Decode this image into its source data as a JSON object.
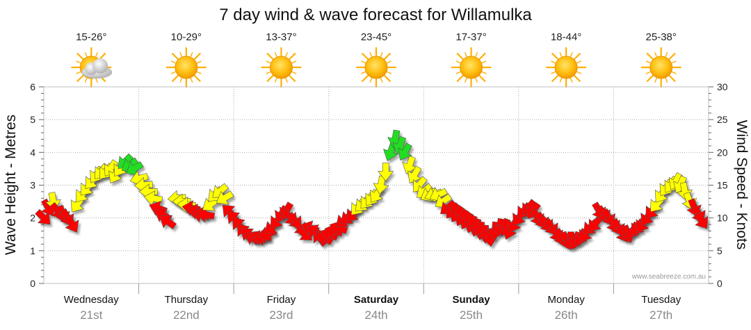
{
  "chart_data": {
    "type": "line",
    "title": "7 day wind & wave forecast for Willamulka",
    "ylabel": "Wave Height - Metres",
    "y2label": "Wind Speed - Knots",
    "ylim": [
      0,
      6
    ],
    "y2lim": [
      0,
      30
    ],
    "y_ticks": [
      "0",
      "1",
      "2",
      "3",
      "4",
      "5",
      "6"
    ],
    "y2_ticks": [
      "0",
      "5",
      "10",
      "15",
      "20",
      "25",
      "30"
    ],
    "grid": true,
    "credit": "www.seabreeze.com.au",
    "colors": {
      "red": "#ff0000",
      "yellow": "#ffff00",
      "green": "#22dd22",
      "sun": "#ffb000"
    },
    "days": [
      {
        "name": "Wednesday",
        "date": "21st",
        "temp": "15-26°",
        "icon": "partly-cloudy-icon",
        "bold": false
      },
      {
        "name": "Thursday",
        "date": "22nd",
        "temp": "10-29°",
        "icon": "sun-icon",
        "bold": false
      },
      {
        "name": "Friday",
        "date": "23rd",
        "temp": "13-37°",
        "icon": "sun-icon",
        "bold": false
      },
      {
        "name": "Saturday",
        "date": "24th",
        "temp": "23-45°",
        "icon": "sun-icon",
        "bold": true
      },
      {
        "name": "Sunday",
        "date": "25th",
        "temp": "17-37°",
        "icon": "sun-icon",
        "bold": true
      },
      {
        "name": "Monday",
        "date": "26th",
        "temp": "18-44°",
        "icon": "sun-icon",
        "bold": false
      },
      {
        "name": "Tuesday",
        "date": "27th",
        "temp": "25-38°",
        "icon": "sun-icon",
        "bold": false
      }
    ],
    "series": [
      {
        "name": "Wind Speed",
        "axis": "right",
        "x_unit": "days from start of Wednesday 21st",
        "points": [
          {
            "x": 0.0,
            "y": 10.0,
            "dir": 135,
            "c": "red"
          },
          {
            "x": 0.05,
            "y": 11.5,
            "dir": 150,
            "c": "red"
          },
          {
            "x": 0.1,
            "y": 12.5,
            "dir": 170,
            "c": "yellow"
          },
          {
            "x": 0.15,
            "y": 11.0,
            "dir": 140,
            "c": "red"
          },
          {
            "x": 0.2,
            "y": 10.5,
            "dir": 160,
            "c": "red"
          },
          {
            "x": 0.25,
            "y": 10.0,
            "dir": 150,
            "c": "red"
          },
          {
            "x": 0.3,
            "y": 9.0,
            "dir": 150,
            "c": "red"
          },
          {
            "x": 0.35,
            "y": 12.0,
            "dir": 215,
            "c": "yellow"
          },
          {
            "x": 0.4,
            "y": 13.5,
            "dir": 220,
            "c": "yellow"
          },
          {
            "x": 0.45,
            "y": 14.5,
            "dir": 220,
            "c": "yellow"
          },
          {
            "x": 0.5,
            "y": 15.5,
            "dir": 220,
            "c": "yellow"
          },
          {
            "x": 0.55,
            "y": 16.5,
            "dir": 215,
            "c": "yellow"
          },
          {
            "x": 0.6,
            "y": 17.0,
            "dir": 220,
            "c": "yellow"
          },
          {
            "x": 0.65,
            "y": 17.0,
            "dir": 220,
            "c": "yellow"
          },
          {
            "x": 0.7,
            "y": 17.5,
            "dir": 215,
            "c": "yellow"
          },
          {
            "x": 0.75,
            "y": 16.5,
            "dir": 210,
            "c": "yellow"
          },
          {
            "x": 0.8,
            "y": 17.5,
            "dir": 215,
            "c": "yellow"
          },
          {
            "x": 0.85,
            "y": 18.5,
            "dir": 225,
            "c": "green"
          },
          {
            "x": 0.9,
            "y": 18.0,
            "dir": 235,
            "c": "green"
          },
          {
            "x": 0.95,
            "y": 17.5,
            "dir": 240,
            "c": "green"
          },
          {
            "x": 1.0,
            "y": 16.0,
            "dir": 255,
            "c": "yellow"
          },
          {
            "x": 1.05,
            "y": 15.0,
            "dir": 265,
            "c": "yellow"
          },
          {
            "x": 1.1,
            "y": 14.0,
            "dir": 270,
            "c": "yellow"
          },
          {
            "x": 1.15,
            "y": 13.0,
            "dir": 280,
            "c": "yellow"
          },
          {
            "x": 1.2,
            "y": 11.5,
            "dir": 290,
            "c": "red"
          },
          {
            "x": 1.25,
            "y": 10.5,
            "dir": 300,
            "c": "red"
          },
          {
            "x": 1.3,
            "y": 9.5,
            "dir": 305,
            "c": "red"
          },
          {
            "x": 1.4,
            "y": 13.0,
            "dir": 265,
            "c": "yellow"
          },
          {
            "x": 1.45,
            "y": 12.5,
            "dir": 270,
            "c": "yellow"
          },
          {
            "x": 1.5,
            "y": 12.0,
            "dir": 275,
            "c": "yellow"
          },
          {
            "x": 1.55,
            "y": 11.5,
            "dir": 280,
            "c": "red"
          },
          {
            "x": 1.6,
            "y": 11.0,
            "dir": 280,
            "c": "red"
          },
          {
            "x": 1.65,
            "y": 10.5,
            "dir": 285,
            "c": "red"
          },
          {
            "x": 1.7,
            "y": 10.5,
            "dir": 280,
            "c": "red"
          },
          {
            "x": 1.75,
            "y": 12.0,
            "dir": 235,
            "c": "yellow"
          },
          {
            "x": 1.8,
            "y": 13.5,
            "dir": 225,
            "c": "yellow"
          },
          {
            "x": 1.85,
            "y": 14.0,
            "dir": 230,
            "c": "yellow"
          },
          {
            "x": 1.9,
            "y": 13.0,
            "dir": 240,
            "c": "yellow"
          },
          {
            "x": 1.95,
            "y": 11.0,
            "dir": 315,
            "c": "red"
          },
          {
            "x": 2.0,
            "y": 10.0,
            "dir": 315,
            "c": "red"
          },
          {
            "x": 2.05,
            "y": 9.0,
            "dir": 320,
            "c": "red"
          },
          {
            "x": 2.1,
            "y": 8.0,
            "dir": 320,
            "c": "red"
          },
          {
            "x": 2.15,
            "y": 7.5,
            "dir": 310,
            "c": "red"
          },
          {
            "x": 2.2,
            "y": 7.0,
            "dir": 300,
            "c": "red"
          },
          {
            "x": 2.25,
            "y": 7.0,
            "dir": 285,
            "c": "red"
          },
          {
            "x": 2.3,
            "y": 7.0,
            "dir": 270,
            "c": "red"
          },
          {
            "x": 2.35,
            "y": 7.5,
            "dir": 250,
            "c": "red"
          },
          {
            "x": 2.4,
            "y": 8.5,
            "dir": 230,
            "c": "red"
          },
          {
            "x": 2.45,
            "y": 9.5,
            "dir": 220,
            "c": "red"
          },
          {
            "x": 2.5,
            "y": 10.5,
            "dir": 210,
            "c": "red"
          },
          {
            "x": 2.55,
            "y": 11.0,
            "dir": 210,
            "c": "red"
          },
          {
            "x": 2.6,
            "y": 10.0,
            "dir": 135,
            "c": "red"
          },
          {
            "x": 2.65,
            "y": 9.5,
            "dir": 140,
            "c": "red"
          },
          {
            "x": 2.7,
            "y": 8.5,
            "dir": 135,
            "c": "red"
          },
          {
            "x": 2.75,
            "y": 7.5,
            "dir": 130,
            "c": "red"
          },
          {
            "x": 2.8,
            "y": 8.5,
            "dir": 290,
            "c": "red"
          },
          {
            "x": 2.85,
            "y": 8.0,
            "dir": 300,
            "c": "red"
          },
          {
            "x": 2.9,
            "y": 7.0,
            "dir": 320,
            "c": "red"
          },
          {
            "x": 2.95,
            "y": 7.0,
            "dir": 300,
            "c": "red"
          },
          {
            "x": 3.0,
            "y": 7.5,
            "dir": 290,
            "c": "red"
          },
          {
            "x": 3.05,
            "y": 8.0,
            "dir": 285,
            "c": "red"
          },
          {
            "x": 3.1,
            "y": 8.5,
            "dir": 290,
            "c": "red"
          },
          {
            "x": 3.15,
            "y": 9.5,
            "dir": 230,
            "c": "red"
          },
          {
            "x": 3.2,
            "y": 10.0,
            "dir": 230,
            "c": "red"
          },
          {
            "x": 3.25,
            "y": 10.5,
            "dir": 225,
            "c": "red"
          },
          {
            "x": 3.3,
            "y": 11.5,
            "dir": 220,
            "c": "yellow"
          },
          {
            "x": 3.35,
            "y": 12.0,
            "dir": 225,
            "c": "yellow"
          },
          {
            "x": 3.4,
            "y": 12.5,
            "dir": 220,
            "c": "yellow"
          },
          {
            "x": 3.45,
            "y": 13.0,
            "dir": 215,
            "c": "yellow"
          },
          {
            "x": 3.5,
            "y": 13.5,
            "dir": 215,
            "c": "yellow"
          },
          {
            "x": 3.55,
            "y": 15.0,
            "dir": 190,
            "c": "yellow"
          },
          {
            "x": 3.6,
            "y": 17.0,
            "dir": 180,
            "c": "yellow"
          },
          {
            "x": 3.65,
            "y": 20.0,
            "dir": 200,
            "c": "green"
          },
          {
            "x": 3.7,
            "y": 22.0,
            "dir": 190,
            "c": "green"
          },
          {
            "x": 3.75,
            "y": 21.0,
            "dir": 200,
            "c": "green"
          },
          {
            "x": 3.8,
            "y": 20.0,
            "dir": 210,
            "c": "green"
          },
          {
            "x": 3.85,
            "y": 18.0,
            "dir": 200,
            "c": "yellow"
          },
          {
            "x": 3.9,
            "y": 16.5,
            "dir": 210,
            "c": "yellow"
          },
          {
            "x": 3.95,
            "y": 15.0,
            "dir": 220,
            "c": "yellow"
          },
          {
            "x": 4.0,
            "y": 14.0,
            "dir": 230,
            "c": "yellow"
          },
          {
            "x": 4.05,
            "y": 13.5,
            "dir": 240,
            "c": "yellow"
          },
          {
            "x": 4.1,
            "y": 13.5,
            "dir": 250,
            "c": "yellow"
          },
          {
            "x": 4.15,
            "y": 13.5,
            "dir": 245,
            "c": "yellow"
          },
          {
            "x": 4.2,
            "y": 12.5,
            "dir": 235,
            "c": "yellow"
          },
          {
            "x": 4.25,
            "y": 11.5,
            "dir": 230,
            "c": "red"
          },
          {
            "x": 4.3,
            "y": 11.0,
            "dir": 220,
            "c": "red"
          },
          {
            "x": 4.35,
            "y": 10.5,
            "dir": 215,
            "c": "red"
          },
          {
            "x": 4.4,
            "y": 10.0,
            "dir": 210,
            "c": "red"
          },
          {
            "x": 4.45,
            "y": 9.5,
            "dir": 210,
            "c": "red"
          },
          {
            "x": 4.5,
            "y": 9.0,
            "dir": 200,
            "c": "red"
          },
          {
            "x": 4.55,
            "y": 8.5,
            "dir": 195,
            "c": "red"
          },
          {
            "x": 4.6,
            "y": 8.0,
            "dir": 185,
            "c": "red"
          },
          {
            "x": 4.65,
            "y": 7.5,
            "dir": 180,
            "c": "red"
          },
          {
            "x": 4.7,
            "y": 7.0,
            "dir": 175,
            "c": "red"
          },
          {
            "x": 4.75,
            "y": 8.0,
            "dir": 185,
            "c": "red"
          },
          {
            "x": 4.8,
            "y": 8.5,
            "dir": 190,
            "c": "red"
          },
          {
            "x": 4.85,
            "y": 8.5,
            "dir": 200,
            "c": "red"
          },
          {
            "x": 4.9,
            "y": 8.0,
            "dir": 200,
            "c": "red"
          },
          {
            "x": 4.95,
            "y": 9.0,
            "dir": 210,
            "c": "red"
          },
          {
            "x": 5.0,
            "y": 10.0,
            "dir": 215,
            "c": "red"
          },
          {
            "x": 5.05,
            "y": 11.0,
            "dir": 220,
            "c": "red"
          },
          {
            "x": 5.1,
            "y": 11.5,
            "dir": 220,
            "c": "red"
          },
          {
            "x": 5.15,
            "y": 11.0,
            "dir": 215,
            "c": "red"
          },
          {
            "x": 5.2,
            "y": 10.0,
            "dir": 150,
            "c": "red"
          },
          {
            "x": 5.25,
            "y": 9.5,
            "dir": 150,
            "c": "red"
          },
          {
            "x": 5.3,
            "y": 9.0,
            "dir": 140,
            "c": "red"
          },
          {
            "x": 5.35,
            "y": 8.5,
            "dir": 145,
            "c": "red"
          },
          {
            "x": 5.4,
            "y": 7.5,
            "dir": 150,
            "c": "red"
          },
          {
            "x": 5.45,
            "y": 7.0,
            "dir": 150,
            "c": "red"
          },
          {
            "x": 5.5,
            "y": 6.5,
            "dir": 160,
            "c": "red"
          },
          {
            "x": 5.55,
            "y": 6.5,
            "dir": 180,
            "c": "red"
          },
          {
            "x": 5.6,
            "y": 6.5,
            "dir": 200,
            "c": "red"
          },
          {
            "x": 5.65,
            "y": 7.0,
            "dir": 210,
            "c": "red"
          },
          {
            "x": 5.7,
            "y": 7.5,
            "dir": 215,
            "c": "red"
          },
          {
            "x": 5.75,
            "y": 8.5,
            "dir": 225,
            "c": "red"
          },
          {
            "x": 5.8,
            "y": 9.0,
            "dir": 220,
            "c": "red"
          },
          {
            "x": 5.85,
            "y": 11.0,
            "dir": 150,
            "c": "red"
          },
          {
            "x": 5.9,
            "y": 10.5,
            "dir": 145,
            "c": "red"
          },
          {
            "x": 5.95,
            "y": 10.0,
            "dir": 150,
            "c": "red"
          },
          {
            "x": 6.0,
            "y": 9.0,
            "dir": 150,
            "c": "red"
          },
          {
            "x": 6.05,
            "y": 8.5,
            "dir": 150,
            "c": "red"
          },
          {
            "x": 6.1,
            "y": 7.5,
            "dir": 150,
            "c": "red"
          },
          {
            "x": 6.15,
            "y": 7.5,
            "dir": 160,
            "c": "red"
          },
          {
            "x": 6.2,
            "y": 8.0,
            "dir": 210,
            "c": "red"
          },
          {
            "x": 6.25,
            "y": 8.5,
            "dir": 215,
            "c": "red"
          },
          {
            "x": 6.3,
            "y": 9.0,
            "dir": 215,
            "c": "red"
          },
          {
            "x": 6.35,
            "y": 10.0,
            "dir": 215,
            "c": "red"
          },
          {
            "x": 6.4,
            "y": 11.0,
            "dir": 220,
            "c": "red"
          },
          {
            "x": 6.45,
            "y": 12.0,
            "dir": 220,
            "c": "yellow"
          },
          {
            "x": 6.5,
            "y": 13.5,
            "dir": 215,
            "c": "yellow"
          },
          {
            "x": 6.55,
            "y": 14.5,
            "dir": 215,
            "c": "yellow"
          },
          {
            "x": 6.6,
            "y": 15.0,
            "dir": 215,
            "c": "yellow"
          },
          {
            "x": 6.65,
            "y": 15.5,
            "dir": 210,
            "c": "yellow"
          },
          {
            "x": 6.7,
            "y": 15.0,
            "dir": 205,
            "c": "yellow"
          },
          {
            "x": 6.75,
            "y": 14.0,
            "dir": 170,
            "c": "yellow"
          },
          {
            "x": 6.8,
            "y": 12.5,
            "dir": 160,
            "c": "yellow"
          },
          {
            "x": 6.85,
            "y": 11.5,
            "dir": 160,
            "c": "red"
          },
          {
            "x": 6.9,
            "y": 10.5,
            "dir": 150,
            "c": "red"
          },
          {
            "x": 6.93,
            "y": 9.5,
            "dir": 145,
            "c": "red"
          }
        ]
      }
    ]
  }
}
